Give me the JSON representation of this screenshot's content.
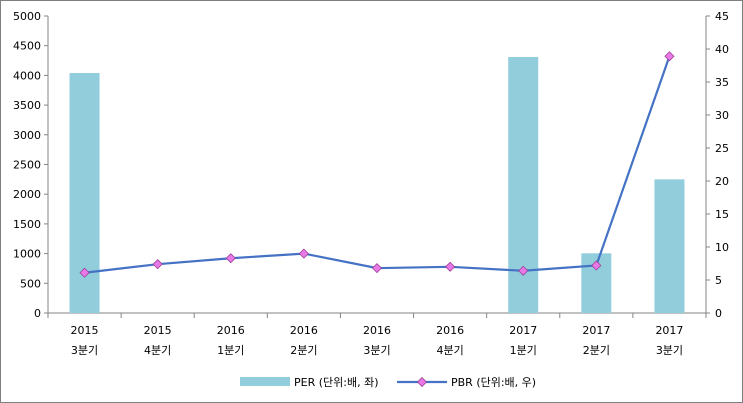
{
  "chart_data": {
    "type": "bar",
    "title": "",
    "categories": [
      [
        "2015",
        "3분기"
      ],
      [
        "2015",
        "4분기"
      ],
      [
        "2016",
        "1분기"
      ],
      [
        "2016",
        "2분기"
      ],
      [
        "2016",
        "3분기"
      ],
      [
        "2016",
        "4분기"
      ],
      [
        "2017",
        "1분기"
      ],
      [
        "2017",
        "2분기"
      ],
      [
        "2017",
        "3분기"
      ]
    ],
    "series": [
      {
        "name": "PER (단위:배, 좌)",
        "type": "bar",
        "axis": "left",
        "color": "#92CDDC",
        "values": [
          4040,
          null,
          null,
          null,
          null,
          null,
          4310,
          1005,
          2250
        ]
      },
      {
        "name": "PBR (단위:배, 우)",
        "type": "line",
        "axis": "right",
        "color": "#4472C4",
        "marker_color": "#E879E6",
        "values": [
          6.1,
          7.4,
          8.3,
          9.0,
          6.8,
          7.0,
          6.4,
          7.2,
          38.9
        ]
      }
    ],
    "y_left": {
      "min": 0,
      "max": 5000,
      "ticks": [
        "0",
        "500",
        "1000",
        "1500",
        "2000",
        "2500",
        "3000",
        "3500",
        "4000",
        "4500",
        "5000"
      ]
    },
    "y_right": {
      "min": 0,
      "max": 45,
      "ticks": [
        "0",
        "5",
        "10",
        "15",
        "20",
        "25",
        "30",
        "35",
        "40",
        "45"
      ]
    },
    "grid": false,
    "legend_position": "bottom"
  }
}
